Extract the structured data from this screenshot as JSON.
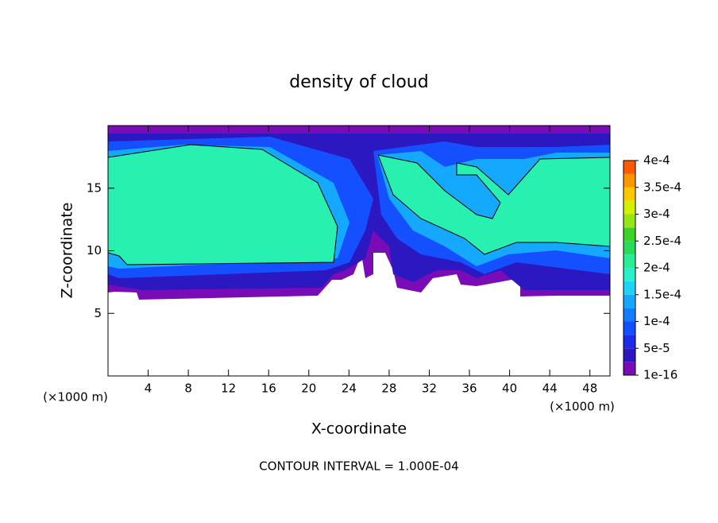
{
  "chart_data": {
    "type": "contour",
    "title": "density of cloud",
    "x_label": "X-coordinate",
    "y_label": "Z-coordinate",
    "x_unit": "(×1000 m)",
    "y_unit": "(×1000 m)",
    "xlim": [
      0,
      50
    ],
    "ylim": [
      0,
      20
    ],
    "xticks": [
      4,
      8,
      12,
      16,
      20,
      24,
      28,
      32,
      36,
      40,
      44,
      48
    ],
    "yticks": [
      5,
      10,
      15
    ],
    "colorbar": {
      "lim": [
        1e-16,
        0.0004
      ],
      "ticks": [
        1e-16,
        {
          "value": 5e-05,
          "label": "5e-5"
        },
        {
          "value": 0.0001,
          "label": "1e-4"
        },
        {
          "value": 0.00015,
          "label": "1.5e-4"
        },
        {
          "value": 0.0002,
          "label": "2e-4"
        },
        {
          "value": 0.00025,
          "label": "2.5e-4"
        },
        {
          "value": 0.0003,
          "label": "3e-4"
        },
        {
          "value": 0.00035,
          "label": "3.5e-4"
        },
        {
          "value": 0.0004,
          "label": "4e-4"
        }
      ],
      "colors": [
        "#7a0cb8",
        "#2c18c0",
        "#1c2ce6",
        "#1450ff",
        "#147cff",
        "#14a8ff",
        "#1ed2f8",
        "#28f0c8",
        "#28ec96",
        "#28dc5a",
        "#3cd228",
        "#96e614",
        "#d2f000",
        "#ffc800",
        "#ff9600",
        "#ff5a00"
      ]
    },
    "annotation": "CONTOUR INTERVAL = 1.000E-04"
  }
}
